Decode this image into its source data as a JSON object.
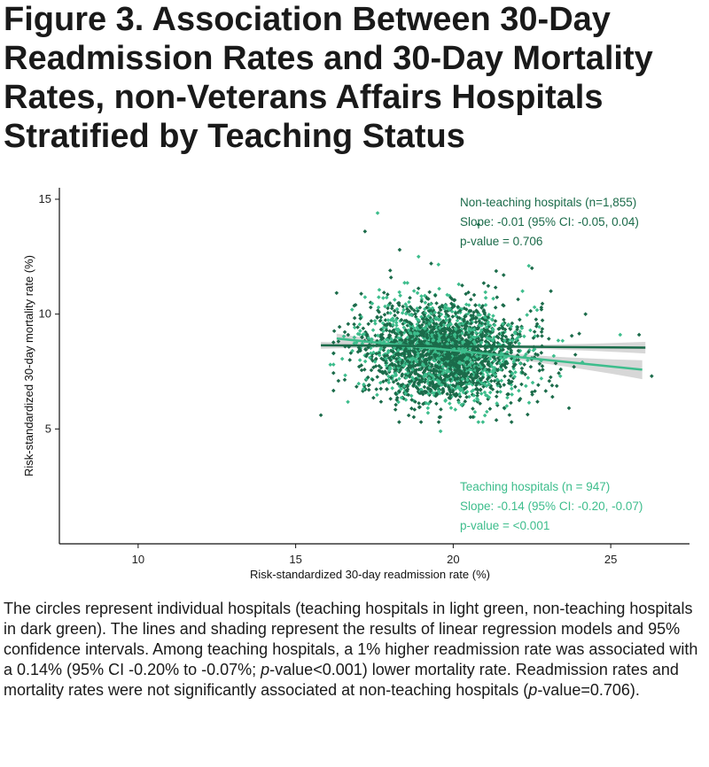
{
  "title": "Figure 3. Association Between 30-Day Readmission Rates and 30-Day Mortality Rates, non-Veterans Affairs Hospitals Stratified by Teaching Status",
  "caption": {
    "p1": "The circles represent individual hospitals (teaching hospitals in light green, non-teaching hospitals in dark green). The lines and shading represent the results of linear regression models and 95% confidence intervals. Among teaching hospitals, a 1% higher readmission rate was associated with a 0.14% (95% CI -0.20% to -0.07%; ",
    "p_italic1": "p",
    "p2": "-value<0.001) lower mortality rate. Readmission rates and mortality rates were not significantly associated at non-teaching hospitals (",
    "p_italic2": "p",
    "p3": "-value=0.706)."
  },
  "chart_data": {
    "type": "scatter",
    "xlabel": "Risk-standardized 30-day readmission rate (%)",
    "ylabel": "Risk-standardized 30-day mortality rate (%)",
    "xlim": [
      7.5,
      27.5
    ],
    "ylim": [
      0,
      15.5
    ],
    "xticks": [
      10,
      15,
      20,
      25
    ],
    "yticks": [
      5,
      10,
      15
    ],
    "colors": {
      "non_teaching": "#1b6b4a",
      "teaching": "#3dbd8c",
      "ci": "#c9c9c9"
    },
    "series": [
      {
        "name": "Non-teaching hospitals (n=1,855)",
        "annotation": [
          "Non-teaching hospitals (n=1,855)",
          "Slope: -0.01 (95% CI: -0.05, 0.04)",
          "p-value = 0.706"
        ],
        "n": 1855,
        "fit": {
          "slope": -0.01,
          "intercept_at_x20": 8.6,
          "x_range": [
            15.8,
            26.1
          ],
          "ci_width": 0.15
        },
        "points": [
          [
            17.2,
            13.6
          ],
          [
            15.8,
            5.6
          ],
          [
            26.3,
            7.3
          ],
          [
            20.8,
            13.9
          ],
          [
            18.3,
            12.8
          ],
          [
            22.5,
            12.0
          ],
          [
            23.1,
            11.0
          ],
          [
            24.2,
            10.0
          ],
          [
            25.9,
            9.1
          ],
          [
            16.9,
            10.4
          ],
          [
            19.3,
            12.2
          ],
          [
            21.6,
            11.7
          ],
          [
            18.0,
            11.9
          ],
          [
            22.8,
            10.2
          ],
          [
            17.4,
            9.7
          ]
        ]
      },
      {
        "name": "Teaching hospitals (n = 947)",
        "annotation": [
          "Teaching hospitals (n = 947)",
          "Slope: -0.14 (95% CI: -0.20, -0.07)",
          "p-value = <0.001"
        ],
        "n": 947,
        "fit": {
          "slope": -0.14,
          "intercept_at_x20": 8.42,
          "x_range": [
            16.3,
            26.0
          ],
          "ci_width": 0.25
        },
        "points": [
          [
            17.6,
            14.4
          ],
          [
            19.6,
            4.9
          ],
          [
            25.3,
            9.1
          ],
          [
            22.4,
            12.1
          ],
          [
            16.8,
            8.4
          ],
          [
            21.7,
            6.0
          ],
          [
            23.4,
            7.3
          ],
          [
            18.9,
            12.5
          ],
          [
            20.8,
            5.3
          ],
          [
            24.1,
            7.9
          ],
          [
            22.2,
            11.0
          ],
          [
            16.1,
            7.8
          ],
          [
            19.2,
            5.7
          ]
        ]
      }
    ]
  }
}
